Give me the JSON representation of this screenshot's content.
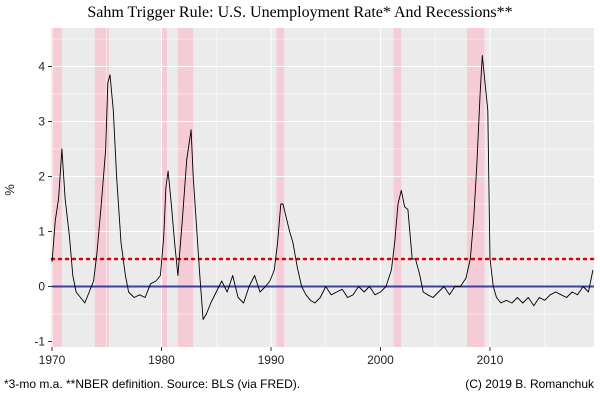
{
  "chart_data": {
    "type": "line",
    "title": "Sahm Trigger Rule: U.S. Unemployment Rate* And Recessions**",
    "ylabel": "%",
    "xlabel": "",
    "xlim": [
      1970,
      2019.5
    ],
    "ylim": [
      -1.1,
      4.7
    ],
    "x_ticks": [
      1970,
      1980,
      1990,
      2000,
      2010
    ],
    "y_ticks": [
      -1,
      0,
      1,
      2,
      3,
      4
    ],
    "grid": true,
    "colors": {
      "panel": "#ebebeb",
      "grid": "#ffffff",
      "series": "#000000",
      "threshold": "#dd0000",
      "zero_line": "#3f3fa0",
      "recession": "#f7c6d2"
    },
    "recessions": [
      {
        "start": 1969.9,
        "end": 1970.9
      },
      {
        "start": 1973.9,
        "end": 1975.2
      },
      {
        "start": 1980.0,
        "end": 1980.5
      },
      {
        "start": 1981.5,
        "end": 1982.9
      },
      {
        "start": 1990.5,
        "end": 1991.2
      },
      {
        "start": 2001.2,
        "end": 2001.9
      },
      {
        "start": 2007.9,
        "end": 2009.5
      }
    ],
    "reference_lines": [
      {
        "y": 0.5,
        "style": "dotted",
        "color": "#dd0000"
      },
      {
        "y": 0,
        "style": "solid",
        "color": "#3f3fa0"
      }
    ],
    "series": [
      {
        "x": [
          1970.0,
          1970.3,
          1970.6,
          1970.9,
          1971.2,
          1971.6,
          1971.9,
          1972.2,
          1972.6,
          1973.0,
          1973.4,
          1973.8,
          1974.1,
          1974.5,
          1974.9,
          1975.1,
          1975.3,
          1975.6,
          1975.9,
          1976.3,
          1976.7,
          1977.0,
          1977.5,
          1978.0,
          1978.5,
          1979.0,
          1979.5,
          1979.9,
          1980.2,
          1980.4,
          1980.6,
          1980.9,
          1981.2,
          1981.5,
          1981.9,
          1982.3,
          1982.7,
          1982.9,
          1983.2,
          1983.5,
          1983.8,
          1984.1,
          1984.5,
          1985.0,
          1985.5,
          1986.0,
          1986.5,
          1987.0,
          1987.5,
          1988.0,
          1988.5,
          1989.0,
          1989.5,
          1989.9,
          1990.3,
          1990.6,
          1990.9,
          1991.1,
          1991.4,
          1991.7,
          1992.0,
          1992.4,
          1992.8,
          1993.2,
          1993.6,
          1994.0,
          1994.5,
          1995.0,
          1995.5,
          1996.0,
          1996.5,
          1997.0,
          1997.5,
          1998.0,
          1998.5,
          1999.0,
          1999.5,
          2000.0,
          2000.5,
          2001.0,
          2001.3,
          2001.6,
          2001.9,
          2002.2,
          2002.5,
          2002.9,
          2003.2,
          2003.6,
          2003.9,
          2004.3,
          2004.8,
          2005.3,
          2005.8,
          2006.3,
          2006.8,
          2007.3,
          2007.8,
          2008.2,
          2008.5,
          2008.8,
          2009.1,
          2009.3,
          2009.5,
          2009.8,
          2010.0,
          2010.3,
          2010.6,
          2011.0,
          2011.5,
          2012.0,
          2012.5,
          2013.0,
          2013.5,
          2014.0,
          2014.5,
          2015.0,
          2015.5,
          2016.0,
          2016.5,
          2017.0,
          2017.5,
          2018.0,
          2018.5,
          2019.0,
          2019.4
        ],
        "y": [
          0.45,
          1.2,
          1.6,
          2.5,
          1.6,
          0.9,
          0.2,
          -0.1,
          -0.2,
          -0.3,
          -0.1,
          0.1,
          0.6,
          1.5,
          2.5,
          3.7,
          3.85,
          3.2,
          2.0,
          0.8,
          0.2,
          -0.1,
          -0.2,
          -0.15,
          -0.2,
          0.05,
          0.1,
          0.2,
          0.9,
          1.8,
          2.1,
          1.5,
          0.8,
          0.2,
          1.2,
          2.3,
          2.85,
          2.0,
          1.1,
          0.2,
          -0.6,
          -0.5,
          -0.3,
          -0.1,
          0.1,
          -0.1,
          0.2,
          -0.2,
          -0.3,
          0.0,
          0.2,
          -0.1,
          0.0,
          0.1,
          0.3,
          0.8,
          1.5,
          1.5,
          1.25,
          1.0,
          0.8,
          0.35,
          0.0,
          -0.15,
          -0.25,
          -0.3,
          -0.2,
          0.0,
          -0.15,
          -0.1,
          -0.05,
          -0.2,
          -0.15,
          0.0,
          -0.1,
          0.0,
          -0.15,
          -0.1,
          0.0,
          0.3,
          0.8,
          1.5,
          1.75,
          1.45,
          1.4,
          0.5,
          0.5,
          0.2,
          -0.1,
          -0.15,
          -0.2,
          -0.1,
          0.0,
          -0.15,
          0.0,
          0.0,
          0.15,
          0.5,
          1.2,
          2.2,
          3.5,
          4.2,
          3.8,
          3.2,
          0.5,
          0.0,
          -0.2,
          -0.3,
          -0.25,
          -0.3,
          -0.2,
          -0.3,
          -0.2,
          -0.35,
          -0.2,
          -0.25,
          -0.15,
          -0.1,
          -0.15,
          -0.2,
          -0.1,
          -0.15,
          0.0,
          -0.1,
          0.3
        ]
      }
    ]
  },
  "captions": {
    "left": "*3-mo m.a. **NBER definition. Source: BLS (via FRED).",
    "right": "(C) 2019 B. Romanchuk"
  }
}
